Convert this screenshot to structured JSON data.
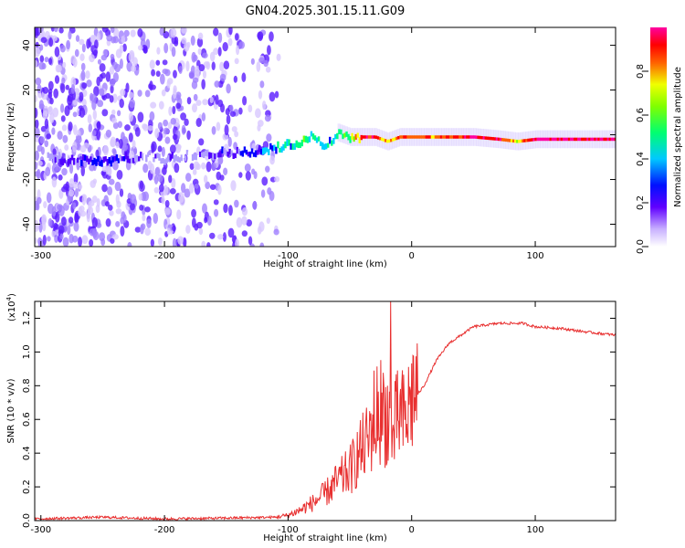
{
  "title": "GN04.2025.301.15.11.G09",
  "chart_data": [
    {
      "type": "heatmap",
      "xlabel": "Height of straight line (km)",
      "ylabel": "Frequency (Hz)",
      "xlim": [
        -305,
        165
      ],
      "ylim": [
        -50,
        48
      ],
      "xticks": [
        -300,
        -200,
        -100,
        0,
        100
      ],
      "yticks": [
        -40,
        -20,
        0,
        20,
        40
      ],
      "ridge": {
        "x": [
          -300,
          -280,
          -250,
          -220,
          -200,
          -180,
          -150,
          -130,
          -110,
          -90,
          -80,
          -70,
          -60,
          -50,
          -40,
          -30,
          -20,
          -10,
          0,
          20,
          50,
          70,
          85,
          100,
          130,
          165
        ],
        "freq": [
          -10,
          -11,
          -12,
          -10,
          -11,
          -9,
          -8,
          -8,
          -6,
          -3,
          0,
          -6,
          1,
          -1,
          -1,
          -1,
          -3,
          -1,
          -1,
          -1,
          -1,
          -2,
          -3,
          -2,
          -2,
          -2
        ],
        "amplitude": [
          0.05,
          0.12,
          0.3,
          0.1,
          0.15,
          0.1,
          0.2,
          0.25,
          0.4,
          0.45,
          0.55,
          0.35,
          0.55,
          0.55,
          0.9,
          0.9,
          0.7,
          0.8,
          0.85,
          0.8,
          0.95,
          0.95,
          0.7,
          0.95,
          0.95,
          0.95
        ]
      },
      "colorbar": {
        "label": "Normalized spectral amplitude",
        "ticks": [
          0.0,
          0.2,
          0.4,
          0.6,
          0.8
        ],
        "colors": [
          "#ffffff",
          "#b0a0ff",
          "#5000ff",
          "#0000ff",
          "#00d0ff",
          "#00ff80",
          "#80ff00",
          "#ffff00",
          "#ff6000",
          "#ff0000",
          "#ff00a0"
        ]
      }
    },
    {
      "type": "line",
      "xlabel": "Height of straight line (km)",
      "ylabel": "SNR (10 * v/v)",
      "y_multiplier": "(x10",
      "y_multiplier_exp": "4",
      "y_multiplier_close": ")",
      "xlim": [
        -305,
        165
      ],
      "ylim": [
        0.0,
        1.3
      ],
      "xticks": [
        -300,
        -200,
        -100,
        0,
        100
      ],
      "yticks": [
        0.0,
        0.2,
        0.4,
        0.6,
        0.8,
        1.0,
        1.2
      ],
      "color": "#e83030",
      "series": {
        "name": "SNR",
        "x": [
          -305,
          -250,
          -200,
          -150,
          -110,
          -100,
          -90,
          -80,
          -70,
          -60,
          -50,
          -45,
          -40,
          -35,
          -30,
          -25,
          -20,
          -15,
          -10,
          -5,
          0,
          10,
          20,
          30,
          40,
          50,
          70,
          90,
          100,
          120,
          140,
          165
        ],
        "values": [
          0.01,
          0.02,
          0.01,
          0.015,
          0.02,
          0.03,
          0.06,
          0.1,
          0.15,
          0.22,
          0.28,
          0.35,
          0.4,
          0.45,
          0.6,
          0.62,
          0.6,
          0.5,
          0.6,
          0.55,
          0.7,
          0.8,
          0.95,
          1.05,
          1.1,
          1.15,
          1.17,
          1.17,
          1.15,
          1.14,
          1.12,
          1.1
        ]
      }
    }
  ]
}
